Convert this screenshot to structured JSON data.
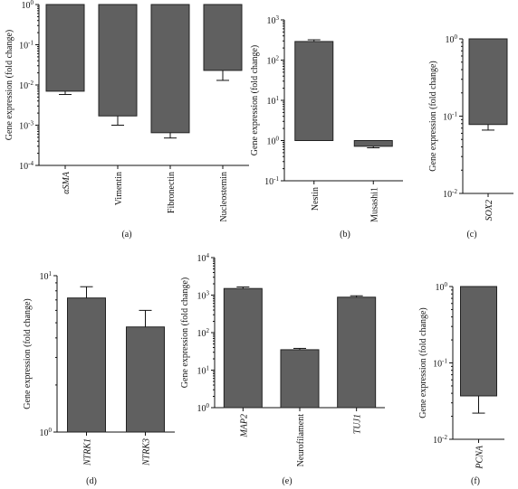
{
  "chart_data": [
    {
      "type": "bar",
      "panel_label": "(a)",
      "ylabel": "Gene expression (fold change)",
      "yscale": "log",
      "ylim": [
        0.0001,
        1
      ],
      "yticks": [
        1,
        0.1,
        0.01,
        0.001,
        0.0001
      ],
      "ytick_labels": [
        "10^0",
        "10^-1",
        "10^-2",
        "10^-3",
        "10^-4"
      ],
      "categories": [
        "αSMA",
        "Vimentin",
        "Fibronectin",
        "Nucleostemin"
      ],
      "category_italic": [
        true,
        false,
        false,
        false
      ],
      "values": [
        0.007,
        0.0017,
        0.00065,
        0.023
      ],
      "error_low": [
        0.0058,
        0.001,
        0.00048,
        0.013
      ],
      "bar_baseline": 1
    },
    {
      "type": "bar",
      "panel_label": "(b)",
      "ylabel": "Gene expression (fold change)",
      "yscale": "log",
      "ylim": [
        0.1,
        1000
      ],
      "yticks": [
        1000,
        100,
        10,
        1,
        0.1
      ],
      "ytick_labels": [
        "10^3",
        "10^2",
        "10^1",
        "10^0",
        "10^-1"
      ],
      "categories": [
        "Nestin",
        "Musashi1"
      ],
      "category_italic": [
        false,
        false
      ],
      "values": [
        290,
        0.72
      ],
      "error_high": [
        320,
        null
      ],
      "error_low": [
        null,
        0.66
      ],
      "bar_baseline": 1
    },
    {
      "type": "bar",
      "panel_label": "(c)",
      "ylabel": "Gene expression (fold change)",
      "yscale": "log",
      "ylim": [
        0.01,
        1
      ],
      "yticks": [
        1,
        0.1,
        0.01
      ],
      "ytick_labels": [
        "10^0",
        "10^-1",
        "10^-2"
      ],
      "categories": [
        "SOX2"
      ],
      "category_italic": [
        true
      ],
      "values": [
        0.078
      ],
      "error_low": [
        0.066
      ],
      "bar_baseline": 1
    },
    {
      "type": "bar",
      "panel_label": "(d)",
      "ylabel": "Gene expression (fold change)",
      "yscale": "log",
      "ylim": [
        1,
        10
      ],
      "yticks": [
        10,
        1
      ],
      "ytick_labels": [
        "10^1",
        "10^0"
      ],
      "categories": [
        "NTRK1",
        "NTRK3"
      ],
      "category_italic": [
        true,
        true
      ],
      "values": [
        7.2,
        4.7
      ],
      "error_high": [
        8.5,
        6.0
      ],
      "bar_baseline": 1
    },
    {
      "type": "bar",
      "panel_label": "(e)",
      "ylabel": "Gene expression (fold change)",
      "yscale": "log",
      "ylim": [
        1,
        10000
      ],
      "yticks": [
        10000,
        1000,
        100,
        10,
        1
      ],
      "ytick_labels": [
        "10^4",
        "10^3",
        "10^2",
        "10^1",
        "10^0"
      ],
      "categories": [
        "MAP2",
        "Neurofilament",
        "TUJ1"
      ],
      "category_italic": [
        true,
        false,
        true
      ],
      "values": [
        1500,
        35,
        880
      ],
      "error_high": [
        1650,
        38,
        960
      ],
      "bar_baseline": 1
    },
    {
      "type": "bar",
      "panel_label": "(f)",
      "ylabel": "Gene expression (fold change)",
      "yscale": "log",
      "ylim": [
        0.01,
        1
      ],
      "yticks": [
        1,
        0.1,
        0.01
      ],
      "ytick_labels": [
        "10^0",
        "10^-1",
        "10^-2"
      ],
      "categories": [
        "PCNA"
      ],
      "category_italic": [
        true
      ],
      "values": [
        0.037
      ],
      "error_low": [
        0.022
      ],
      "bar_baseline": 1
    }
  ],
  "colors": {
    "bar_fill": "#606060",
    "bar_stroke": "#222222",
    "axis": "#111111"
  }
}
